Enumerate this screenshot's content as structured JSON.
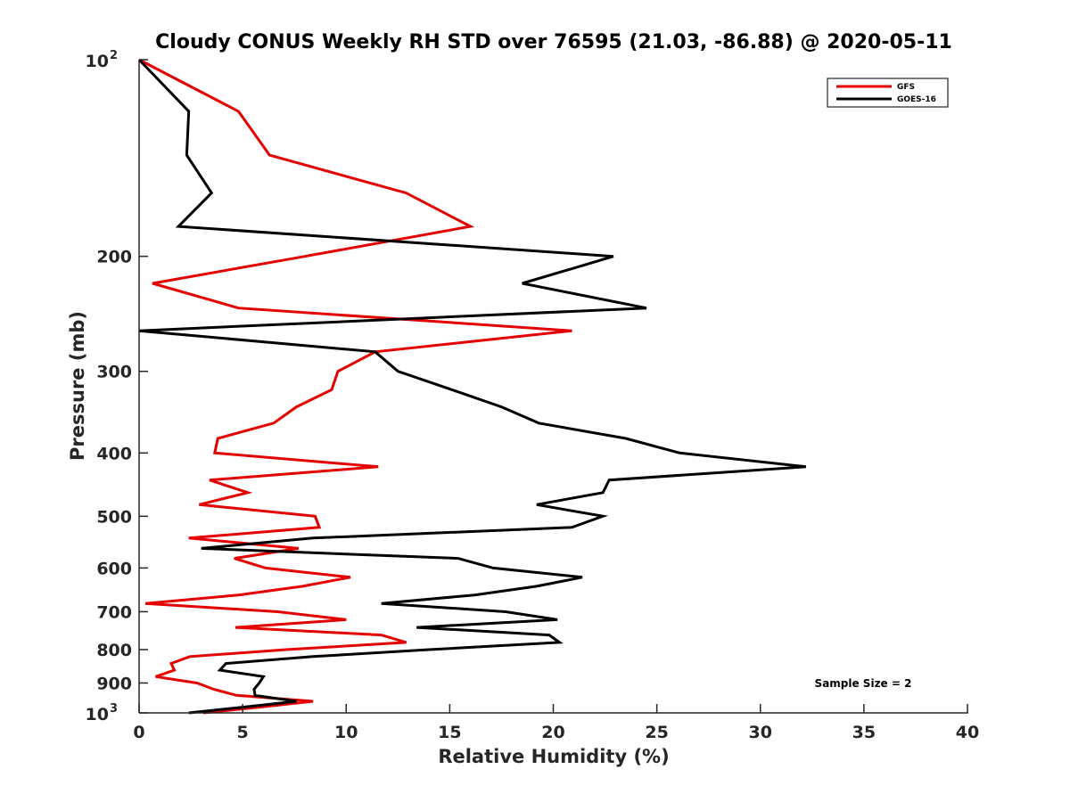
{
  "chart_data": {
    "type": "line",
    "title": "Cloudy CONUS Weekly RH STD over 76595 (21.03, -86.88) @ 2020-05-11",
    "xlabel": "Relative Humidity (%)",
    "ylabel": "Pressure (mb)",
    "xlim": [
      0,
      40
    ],
    "ylim": [
      100,
      1000
    ],
    "yscale": "log",
    "y_reversed": true,
    "grid": false,
    "legend_position": "top-right",
    "x_ticks": [
      0,
      5,
      10,
      15,
      20,
      25,
      30,
      35,
      40
    ],
    "x_tick_labels": [
      "0",
      "5",
      "10",
      "15",
      "20",
      "25",
      "30",
      "35",
      "40"
    ],
    "y_ticks": [
      {
        "value": 100,
        "base": "10",
        "exp": "2",
        "label": ""
      },
      {
        "value": 200,
        "label": "200"
      },
      {
        "value": 300,
        "label": "300"
      },
      {
        "value": 400,
        "label": "400"
      },
      {
        "value": 500,
        "label": "500"
      },
      {
        "value": 600,
        "label": "600"
      },
      {
        "value": 700,
        "label": "700"
      },
      {
        "value": 800,
        "label": "800"
      },
      {
        "value": 900,
        "label": "900"
      },
      {
        "value": 1000,
        "base": "10",
        "exp": "3",
        "label": ""
      }
    ],
    "pressure_levels": [
      100,
      120,
      140,
      160,
      180,
      200,
      220,
      240,
      260,
      280,
      300,
      320,
      340,
      360,
      380,
      400,
      420,
      440,
      460,
      480,
      500,
      520,
      540,
      560,
      580,
      600,
      620,
      640,
      660,
      680,
      700,
      720,
      740,
      760,
      780,
      800,
      820,
      840,
      860,
      880,
      900,
      920,
      940,
      960,
      980,
      1000
    ],
    "series": [
      {
        "name": "GFS",
        "color": "#e50000",
        "values": [
          0,
          4.8,
          6.3,
          12.9,
          16.0,
          8.0,
          0.65,
          4.8,
          20.9,
          11.4,
          9.6,
          9.3,
          7.6,
          6.5,
          3.8,
          3.65,
          11.55,
          3.4,
          5.25,
          2.9,
          8.5,
          8.7,
          2.4,
          7.7,
          4.6,
          6.1,
          10.2,
          7.9,
          4.8,
          0.3,
          6.7,
          10.0,
          4.65,
          11.7,
          12.9,
          7.1,
          2.45,
          1.55,
          1.7,
          0.8,
          2.8,
          3.6,
          4.7,
          8.4,
          5.8,
          3.1
        ]
      },
      {
        "name": "GOES-16",
        "color": "#000000",
        "values": [
          0,
          2.4,
          2.3,
          3.5,
          1.9,
          22.9,
          18.5,
          24.5,
          0.0,
          11.4,
          12.5,
          15.1,
          17.5,
          19.3,
          23.5,
          26.1,
          32.2,
          22.7,
          22.4,
          19.2,
          22.4,
          20.9,
          8.4,
          3.0,
          15.4,
          17.1,
          21.4,
          19.2,
          16.2,
          11.7,
          17.7,
          20.2,
          13.4,
          19.8,
          20.3,
          14.0,
          8.4,
          4.2,
          3.9,
          6.0,
          5.8,
          5.55,
          5.6,
          7.6,
          5.0,
          2.4
        ]
      }
    ],
    "annotations": [
      {
        "text": "Sample Size = 2",
        "position": "bottom-right"
      }
    ]
  }
}
